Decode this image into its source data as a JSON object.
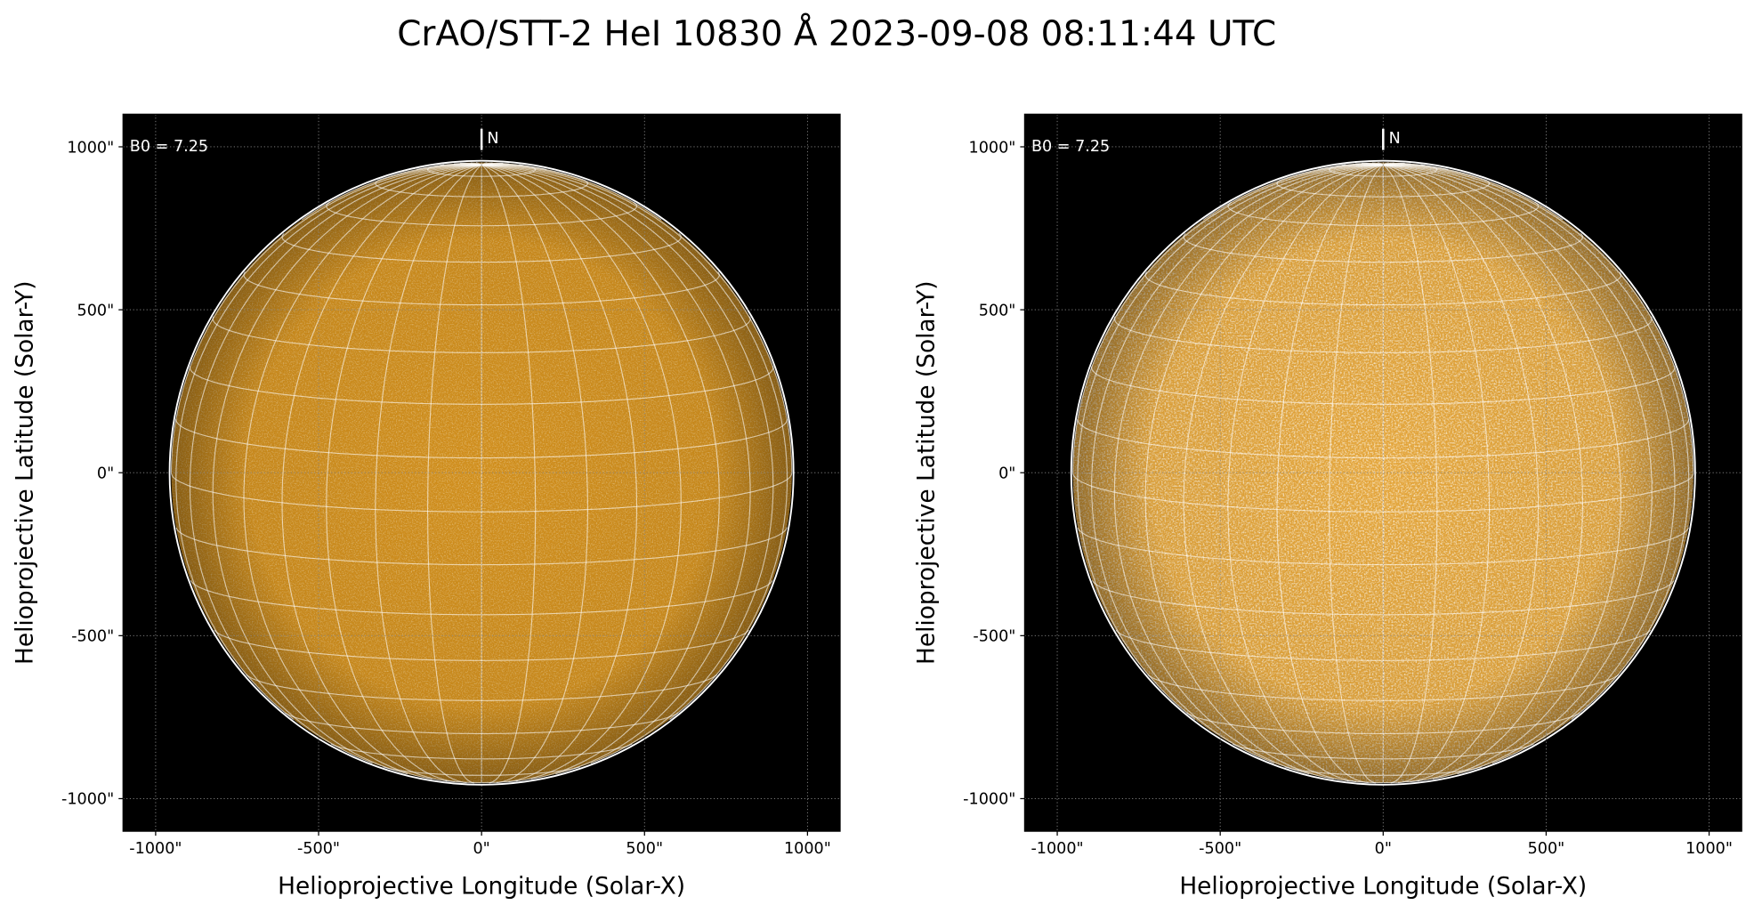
{
  "title": "CrAO/STT-2 HeI 10830 Å 2023-09-08 08:11:44 UTC",
  "chart_data": [
    {
      "type": "image",
      "xlabel": "Helioprojective Longitude (Solar-X)",
      "ylabel": "Helioprojective Latitude (Solar-Y)",
      "xlim": [
        -1100,
        1100
      ],
      "ylim": [
        -1100,
        1100
      ],
      "xticks": [
        {
          "value": -1000,
          "label": "-1000\""
        },
        {
          "value": -500,
          "label": "-500\""
        },
        {
          "value": 0,
          "label": "0\""
        },
        {
          "value": 500,
          "label": "500\""
        },
        {
          "value": 1000,
          "label": "1000\""
        }
      ],
      "yticks": [
        {
          "value": -1000,
          "label": "-1000\""
        },
        {
          "value": -500,
          "label": "-500\""
        },
        {
          "value": 0,
          "label": "0\""
        },
        {
          "value": 500,
          "label": "500\""
        },
        {
          "value": 1000,
          "label": "1000\""
        }
      ],
      "grid": true,
      "disk_radius": 952,
      "b0": {
        "value": 7.25,
        "label": "B0 = 7.25"
      },
      "north_label": "N",
      "grid_spacing_deg": 10,
      "color": "#d08e1c"
    },
    {
      "type": "image",
      "xlabel": "Helioprojective Longitude (Solar-X)",
      "ylabel": "Helioprojective Latitude (Solar-Y)",
      "xlim": [
        -1100,
        1100
      ],
      "ylim": [
        -1100,
        1100
      ],
      "xticks": [
        {
          "value": -1000,
          "label": "-1000\""
        },
        {
          "value": -500,
          "label": "-500\""
        },
        {
          "value": 0,
          "label": "0\""
        },
        {
          "value": 500,
          "label": "500\""
        },
        {
          "value": 1000,
          "label": "1000\""
        }
      ],
      "yticks": [
        {
          "value": -1000,
          "label": "-1000\""
        },
        {
          "value": -500,
          "label": "-500\""
        },
        {
          "value": 0,
          "label": "0\""
        },
        {
          "value": 500,
          "label": "500\""
        },
        {
          "value": 1000,
          "label": "1000\""
        }
      ],
      "grid": true,
      "disk_radius": 952,
      "b0": {
        "value": 7.25,
        "label": "B0 = 7.25"
      },
      "north_label": "N",
      "grid_spacing_deg": 10,
      "color": "#e4a53a"
    }
  ]
}
